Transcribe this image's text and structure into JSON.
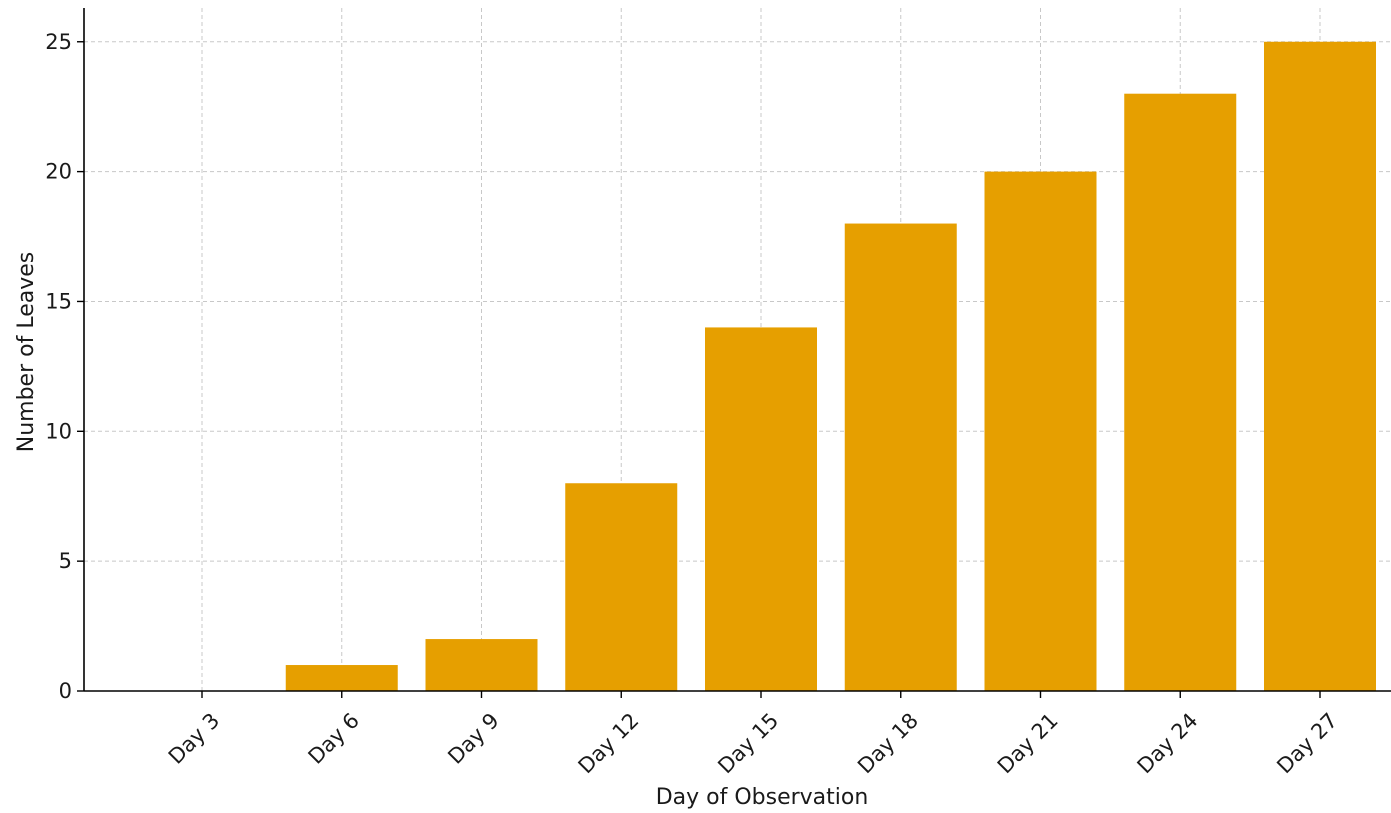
{
  "chart_data": {
    "type": "bar",
    "title": "",
    "xlabel": "Day of Observation",
    "ylabel": "Number of Leaves",
    "categories": [
      "Day 3",
      "Day 6",
      "Day 9",
      "Day 12",
      "Day 15",
      "Day 18",
      "Day 21",
      "Day 24",
      "Day 27"
    ],
    "values": [
      0,
      1,
      2,
      8,
      14,
      18,
      20,
      23,
      25
    ],
    "ylim": [
      0,
      26.3
    ],
    "yticks": [
      0,
      5,
      10,
      15,
      20,
      25
    ],
    "grid": true,
    "bar_color": "#E69F00",
    "grid_color": "#c8c8c8",
    "axis_color": "#000000"
  }
}
